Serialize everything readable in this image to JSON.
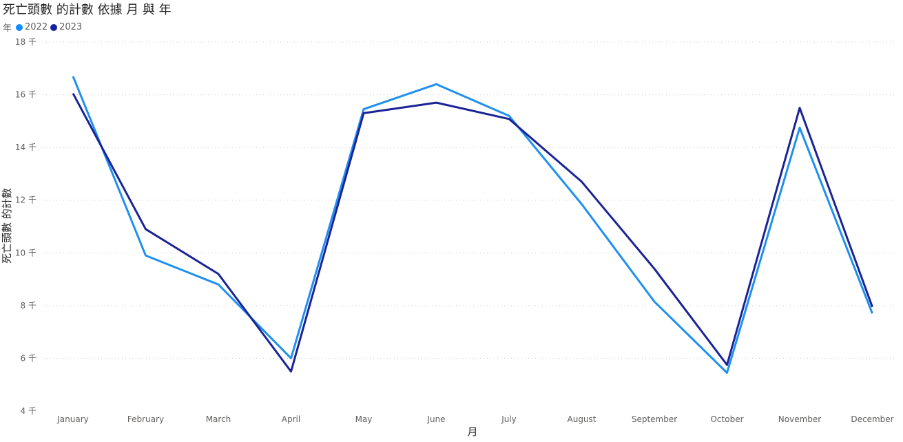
{
  "chart_data": {
    "type": "line",
    "title": "死亡頭數 的計數 依據 月 與 年",
    "xlabel": "月",
    "ylabel": "死亡頭數 的計數",
    "ylim": [
      4000,
      18000
    ],
    "y_ticks": [
      {
        "value": 4000,
        "label": "4 千"
      },
      {
        "value": 6000,
        "label": "6 千"
      },
      {
        "value": 8000,
        "label": "8 千"
      },
      {
        "value": 10000,
        "label": "10 千"
      },
      {
        "value": 12000,
        "label": "12 千"
      },
      {
        "value": 14000,
        "label": "14 千"
      },
      {
        "value": 16000,
        "label": "16 千"
      },
      {
        "value": 18000,
        "label": "18 千"
      }
    ],
    "grid": true,
    "legend": {
      "title": "年",
      "position": "top-left"
    },
    "categories": [
      "January",
      "February",
      "March",
      "April",
      "May",
      "June",
      "July",
      "August",
      "September",
      "October",
      "November",
      "December"
    ],
    "series": [
      {
        "name": "2022",
        "color": "#118DFF",
        "line_color": "#1E90F0",
        "values": [
          16700,
          9900,
          8800,
          6000,
          15450,
          16400,
          15200,
          11850,
          8150,
          5450,
          14750,
          7700
        ]
      },
      {
        "name": "2023",
        "color": "#12239E",
        "line_color": "#1A2396",
        "values": [
          16050,
          10900,
          9200,
          5500,
          15300,
          15700,
          15080,
          12700,
          9400,
          5750,
          15500,
          7950
        ]
      }
    ]
  }
}
